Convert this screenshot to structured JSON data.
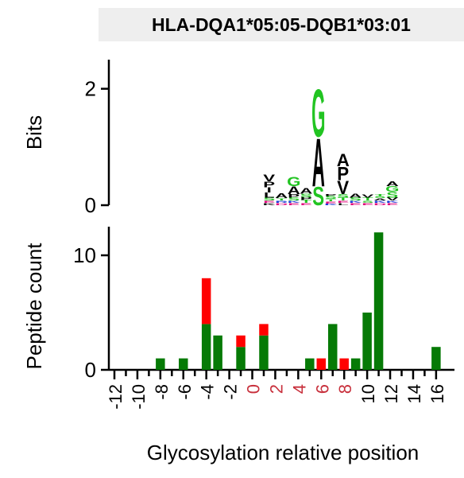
{
  "chart_data": {
    "title": "HLA-DQA1*05:05-DQB1*03:01",
    "panels": [
      {
        "type": "sequence-logo",
        "ylabel": "Bits",
        "ylim": [
          0,
          2.5
        ],
        "yticks": [
          0,
          2
        ],
        "positions": [
          {
            "x": -1,
            "stack": [
              {
                "letter": "K",
                "bits": 0.04,
                "color": "#000000"
              },
              {
                "letter": "E",
                "bits": 0.04,
                "color": "#e0007a"
              },
              {
                "letter": "S",
                "bits": 0.05,
                "color": "#22c422"
              },
              {
                "letter": "L",
                "bits": 0.09,
                "color": "#000000"
              },
              {
                "letter": "I",
                "bits": 0.09,
                "color": "#000000"
              },
              {
                "letter": "P",
                "bits": 0.1,
                "color": "#000000"
              },
              {
                "letter": "V",
                "bits": 0.12,
                "color": "#000000"
              }
            ]
          },
          {
            "x": 0,
            "stack": [
              {
                "letter": "D",
                "bits": 0.04,
                "color": "#e0007a"
              },
              {
                "letter": "R",
                "bits": 0.04,
                "color": "#1a3bd6"
              },
              {
                "letter": "T",
                "bits": 0.04,
                "color": "#22c422"
              },
              {
                "letter": "A",
                "bits": 0.08,
                "color": "#000000"
              }
            ]
          },
          {
            "x": 1,
            "stack": [
              {
                "letter": "E",
                "bits": 0.04,
                "color": "#e0007a"
              },
              {
                "letter": "K",
                "bits": 0.04,
                "color": "#1a3bd6"
              },
              {
                "letter": "S",
                "bits": 0.05,
                "color": "#22c422"
              },
              {
                "letter": "P",
                "bits": 0.06,
                "color": "#000000"
              },
              {
                "letter": "A",
                "bits": 0.14,
                "color": "#000000"
              },
              {
                "letter": "G",
                "bits": 0.16,
                "color": "#22c422"
              }
            ]
          },
          {
            "x": 2,
            "stack": [
              {
                "letter": "E",
                "bits": 0.04,
                "color": "#e0007a"
              },
              {
                "letter": "T",
                "bits": 0.05,
                "color": "#22c422"
              },
              {
                "letter": "P",
                "bits": 0.05,
                "color": "#000000"
              },
              {
                "letter": "S",
                "bits": 0.06,
                "color": "#22c422"
              },
              {
                "letter": "A",
                "bits": 0.1,
                "color": "#000000"
              }
            ]
          },
          {
            "x": 3,
            "stack": [
              {
                "letter": "S",
                "bits": 0.33,
                "color": "#22c422"
              },
              {
                "letter": "A",
                "bits": 0.85,
                "color": "#000000"
              },
              {
                "letter": "G",
                "bits": 0.84,
                "color": "#22c422"
              }
            ]
          },
          {
            "x": 4,
            "stack": [
              {
                "letter": "K",
                "bits": 0.03,
                "color": "#1a3bd6"
              },
              {
                "letter": "E",
                "bits": 0.04,
                "color": "#e0007a"
              },
              {
                "letter": "T",
                "bits": 0.04,
                "color": "#22c422"
              },
              {
                "letter": "S",
                "bits": 0.05,
                "color": "#22c422"
              },
              {
                "letter": "P",
                "bits": 0.04,
                "color": "#000000"
              }
            ]
          },
          {
            "x": 5,
            "stack": [
              {
                "letter": "L",
                "bits": 0.04,
                "color": "#000000"
              },
              {
                "letter": "E",
                "bits": 0.04,
                "color": "#e0007a"
              },
              {
                "letter": "T",
                "bits": 0.05,
                "color": "#22c422"
              },
              {
                "letter": "S",
                "bits": 0.06,
                "color": "#22c422"
              },
              {
                "letter": "V",
                "bits": 0.24,
                "color": "#000000"
              },
              {
                "letter": "P",
                "bits": 0.24,
                "color": "#000000"
              },
              {
                "letter": "A",
                "bits": 0.22,
                "color": "#000000"
              }
            ]
          },
          {
            "x": 6,
            "stack": [
              {
                "letter": "E",
                "bits": 0.04,
                "color": "#e0007a"
              },
              {
                "letter": "K",
                "bits": 0.04,
                "color": "#1a3bd6"
              },
              {
                "letter": "S",
                "bits": 0.05,
                "color": "#22c422"
              },
              {
                "letter": "A",
                "bits": 0.07,
                "color": "#000000"
              }
            ]
          },
          {
            "x": 7,
            "stack": [
              {
                "letter": "E",
                "bits": 0.04,
                "color": "#e0007a"
              },
              {
                "letter": "S",
                "bits": 0.04,
                "color": "#22c422"
              },
              {
                "letter": "T",
                "bits": 0.05,
                "color": "#22c422"
              },
              {
                "letter": "V",
                "bits": 0.05,
                "color": "#000000"
              }
            ]
          },
          {
            "x": 8,
            "stack": [
              {
                "letter": "D",
                "bits": 0.04,
                "color": "#e0007a"
              },
              {
                "letter": "K",
                "bits": 0.04,
                "color": "#1a3bd6"
              },
              {
                "letter": "A",
                "bits": 0.04,
                "color": "#000000"
              },
              {
                "letter": "S",
                "bits": 0.04,
                "color": "#22c422"
              },
              {
                "letter": "T",
                "bits": 0.04,
                "color": "#22c422"
              }
            ]
          },
          {
            "x": 9,
            "stack": [
              {
                "letter": "E",
                "bits": 0.04,
                "color": "#e0007a"
              },
              {
                "letter": "K",
                "bits": 0.04,
                "color": "#1a3bd6"
              },
              {
                "letter": "V",
                "bits": 0.05,
                "color": "#000000"
              },
              {
                "letter": "S",
                "bits": 0.1,
                "color": "#22c422"
              },
              {
                "letter": "G",
                "bits": 0.1,
                "color": "#22c422"
              },
              {
                "letter": "A",
                "bits": 0.08,
                "color": "#000000"
              }
            ]
          }
        ]
      },
      {
        "type": "bar",
        "stacked": true,
        "ylabel": "Peptide count",
        "xlabel": "Glycosylation relative position",
        "ylim": [
          0,
          12.5
        ],
        "yticks": [
          0,
          10
        ],
        "xlim": [
          -13,
          17
        ],
        "xticks": [
          -12,
          -10,
          -8,
          -6,
          -4,
          -2,
          0,
          2,
          4,
          6,
          8,
          10,
          12,
          14,
          16
        ],
        "xtick_labels": [
          "-12",
          "-10",
          "-8",
          "-6",
          "-4",
          "-2",
          "0",
          "2",
          "4",
          "6",
          "8",
          "10",
          "12",
          "14",
          "16"
        ],
        "highlighted_xticks": [
          0,
          2,
          4,
          6,
          8
        ],
        "highlight_color": "#c8303c",
        "x": [
          -8,
          -6,
          -4,
          -3,
          -1,
          1,
          3,
          5,
          6,
          7,
          8,
          9,
          10,
          11,
          16
        ],
        "series": [
          {
            "color": "#067a06",
            "values": [
              1,
              1,
              4,
              3,
              2,
              3,
              0,
              1,
              0,
              4,
              0,
              1,
              5,
              12,
              2
            ]
          },
          {
            "color": "#ff0000",
            "values": [
              0,
              0,
              4,
              0,
              1,
              1,
              0,
              0,
              1,
              0,
              1,
              0,
              0,
              0,
              0
            ]
          }
        ]
      }
    ]
  }
}
